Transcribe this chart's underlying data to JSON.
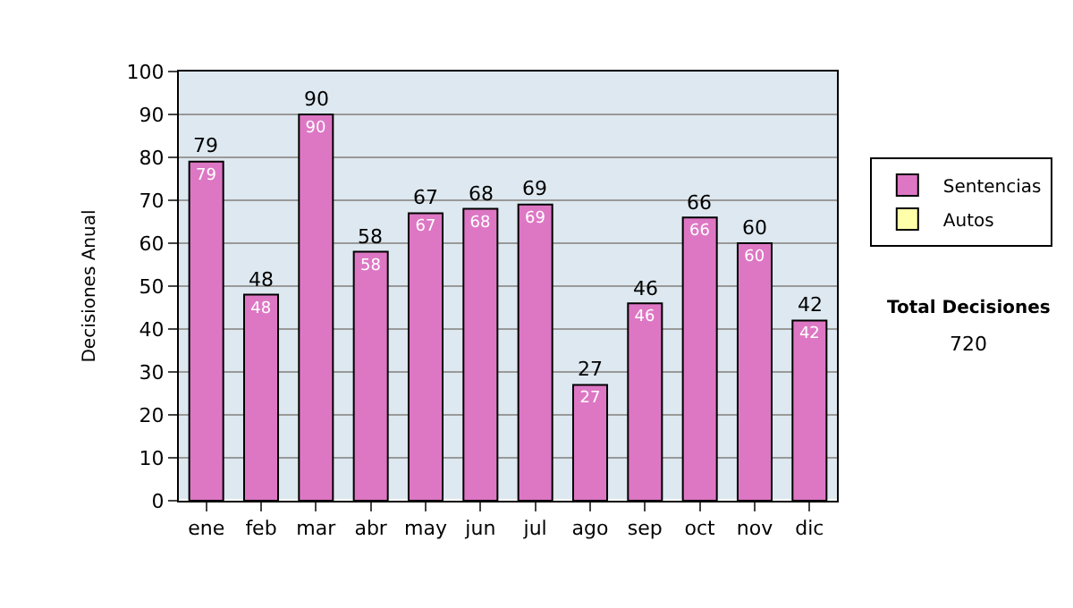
{
  "chart_data": {
    "type": "bar",
    "ylabel": "Decisiones Anual",
    "categories": [
      "ene",
      "feb",
      "mar",
      "abr",
      "may",
      "jun",
      "jul",
      "ago",
      "sep",
      "oct",
      "nov",
      "dic"
    ],
    "series": [
      {
        "name": "Sentencias",
        "color": "#dd77c4",
        "values": [
          79,
          48,
          90,
          58,
          67,
          68,
          69,
          27,
          46,
          66,
          60,
          42
        ],
        "value_labels": [
          "79",
          "48",
          "90",
          "58",
          "67",
          "68",
          "69",
          "27",
          "46",
          "66",
          "60",
          "42"
        ]
      },
      {
        "name": "Autos",
        "color": "#ffffaa",
        "values": [
          null,
          null,
          null,
          null,
          null,
          null,
          null,
          null,
          null,
          null,
          null,
          null
        ]
      }
    ],
    "ylim": [
      0,
      100
    ],
    "yticks": [
      0,
      10,
      20,
      30,
      40,
      50,
      60,
      70,
      80,
      90,
      100
    ],
    "grid": "y",
    "legend": "right",
    "annotations": [
      {
        "text": "79",
        "x": "ene",
        "y": 79
      },
      {
        "text": "48",
        "x": "feb",
        "y": 48
      },
      {
        "text": "90",
        "x": "mar",
        "y": 90
      },
      {
        "text": "58",
        "x": "abr",
        "y": 58
      },
      {
        "text": "67",
        "x": "may",
        "y": 67
      },
      {
        "text": "68",
        "x": "jun",
        "y": 68
      },
      {
        "text": "69",
        "x": "jul",
        "y": 69
      },
      {
        "text": "27",
        "x": "ago",
        "y": 27
      },
      {
        "text": "46",
        "x": "sep",
        "y": 46
      },
      {
        "text": "66",
        "x": "oct",
        "y": 66
      },
      {
        "text": "60",
        "x": "nov",
        "y": 60
      },
      {
        "text": "42",
        "x": "dic",
        "y": 42
      },
      "Total Decisiones",
      "720"
    ]
  }
}
